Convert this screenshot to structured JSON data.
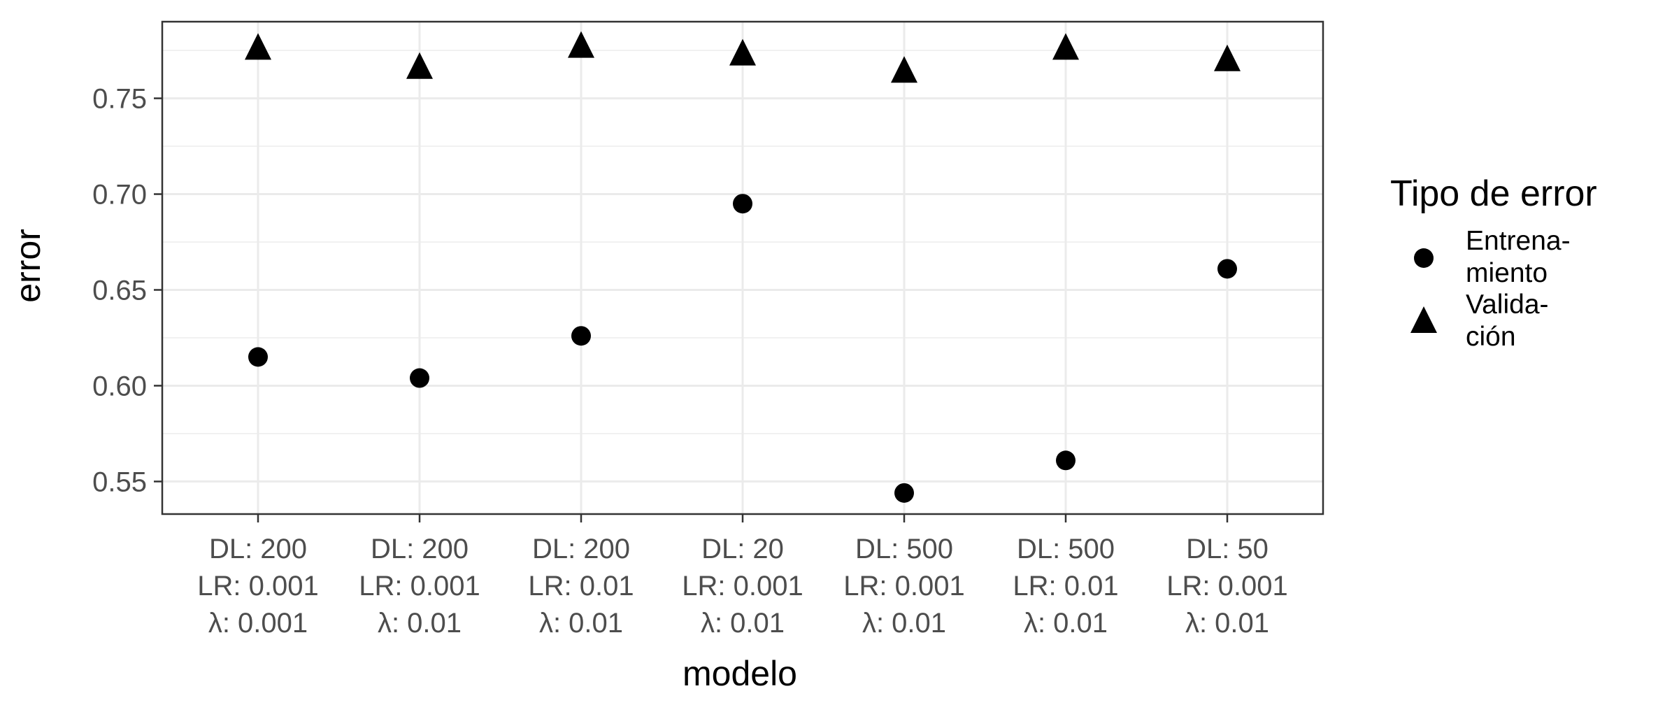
{
  "chart_data": {
    "type": "scatter",
    "categories": [
      "DL: 200\nLR: 0.001\nλ: 0.001",
      "DL: 200\nLR: 0.001\nλ: 0.01",
      "DL: 200\nLR: 0.01\nλ: 0.01",
      "DL: 20\nLR: 0.001\nλ: 0.01",
      "DL: 500\nLR: 0.001\nλ: 0.01",
      "DL: 500\nLR: 0.01\nλ: 0.01",
      "DL: 50\nLR: 0.001\nλ: 0.01"
    ],
    "series": [
      {
        "name": "Entrena-\nmiento",
        "shape": "circle",
        "values": [
          0.615,
          0.604,
          0.626,
          0.695,
          0.544,
          0.561,
          0.661
        ]
      },
      {
        "name": "Valida-\nción",
        "shape": "triangle",
        "values": [
          0.776,
          0.766,
          0.777,
          0.773,
          0.764,
          0.776,
          0.77
        ]
      }
    ],
    "xlabel": "modelo",
    "ylabel": "error",
    "ylim": [
      0.533,
      0.79
    ],
    "yticks": [
      0.55,
      0.6,
      0.65,
      0.7,
      0.75
    ],
    "ytick_labels": [
      "0.55",
      "0.60",
      "0.65",
      "0.70",
      "0.75"
    ],
    "legend": {
      "title": "Tipo de error",
      "position": "right"
    },
    "grid": true,
    "colors": {
      "points": "#000000",
      "grid": "#ebebeb",
      "panel_border": "#333333",
      "tick_text": "#4d4d4d"
    }
  }
}
